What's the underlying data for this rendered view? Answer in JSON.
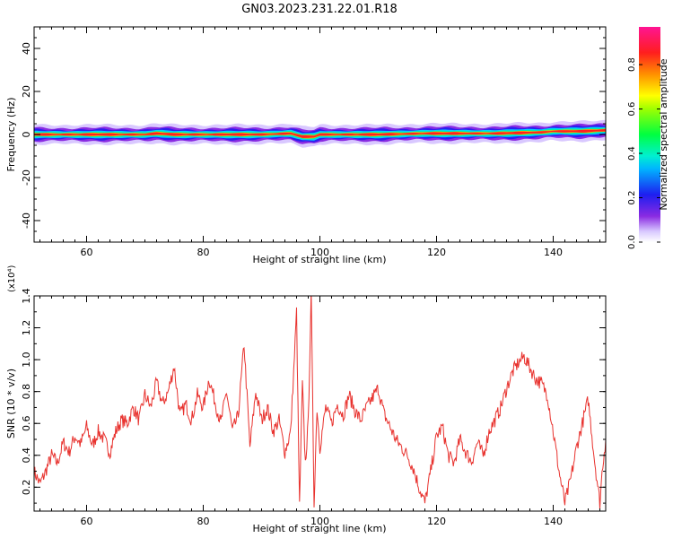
{
  "figure_title": "GN03.2023.231.22.01.R18",
  "chart_data": [
    {
      "type": "heatmap",
      "title": "",
      "xlabel": "Height of straight line (km)",
      "ylabel": "Frequency (Hz)",
      "xlim": [
        51,
        149
      ],
      "ylim": [
        -50,
        50
      ],
      "xticks": [
        60,
        80,
        100,
        120,
        140
      ],
      "yticks": [
        -40,
        -20,
        0,
        20,
        40
      ],
      "band_center_hz": [
        [
          51,
          0
        ],
        [
          60,
          0
        ],
        [
          70,
          0
        ],
        [
          72,
          0.5
        ],
        [
          75,
          0
        ],
        [
          80,
          0
        ],
        [
          85,
          0
        ],
        [
          90,
          0
        ],
        [
          95,
          0.5
        ],
        [
          97,
          -1
        ],
        [
          99,
          -1
        ],
        [
          100,
          0
        ],
        [
          110,
          0
        ],
        [
          118,
          0.5
        ],
        [
          125,
          0.5
        ],
        [
          130,
          0.5
        ],
        [
          138,
          1
        ],
        [
          140,
          1.5
        ],
        [
          145,
          1.5
        ],
        [
          149,
          2
        ]
      ],
      "colorbar": {
        "label": "Normalized spectral amplitude",
        "range": [
          0,
          0.97
        ],
        "ticks": [
          0.0,
          0.2,
          0.4,
          0.6,
          0.8
        ]
      }
    },
    {
      "type": "line",
      "title": "",
      "xlabel": "Height of straight line (km)",
      "ylabel": "SNR (10 * v/v)",
      "y_multiplier_label": "(x10⁴)",
      "xlim": [
        51,
        149
      ],
      "ylim": [
        0.05,
        1.4
      ],
      "xticks": [
        60,
        80,
        100,
        120,
        140
      ],
      "yticks": [
        0.2,
        0.4,
        0.6,
        0.8,
        1.0,
        1.2,
        1.4
      ],
      "grid": false,
      "series": [
        {
          "color": "#e8322e",
          "points": [
            [
              51,
              0.3
            ],
            [
              52,
              0.22
            ],
            [
              53,
              0.3
            ],
            [
              54,
              0.4
            ],
            [
              55,
              0.35
            ],
            [
              56,
              0.48
            ],
            [
              57,
              0.42
            ],
            [
              58,
              0.52
            ],
            [
              59,
              0.47
            ],
            [
              60,
              0.58
            ],
            [
              61,
              0.46
            ],
            [
              62,
              0.55
            ],
            [
              63,
              0.5
            ],
            [
              64,
              0.42
            ],
            [
              65,
              0.55
            ],
            [
              66,
              0.62
            ],
            [
              67,
              0.6
            ],
            [
              68,
              0.7
            ],
            [
              69,
              0.62
            ],
            [
              70,
              0.78
            ],
            [
              71,
              0.7
            ],
            [
              72,
              0.86
            ],
            [
              73,
              0.72
            ],
            [
              74,
              0.8
            ],
            [
              75,
              0.96
            ],
            [
              76,
              0.65
            ],
            [
              77,
              0.72
            ],
            [
              78,
              0.62
            ],
            [
              79,
              0.78
            ],
            [
              80,
              0.7
            ],
            [
              81,
              0.88
            ],
            [
              82,
              0.74
            ],
            [
              83,
              0.6
            ],
            [
              84,
              0.8
            ],
            [
              85,
              0.55
            ],
            [
              86,
              0.65
            ],
            [
              87,
              1.1
            ],
            [
              88,
              0.45
            ],
            [
              89,
              0.8
            ],
            [
              90,
              0.62
            ],
            [
              91,
              0.7
            ],
            [
              92,
              0.55
            ],
            [
              93,
              0.62
            ],
            [
              94,
              0.42
            ],
            [
              95,
              0.55
            ],
            [
              96,
              1.3
            ],
            [
              96.5,
              0.08
            ],
            [
              97,
              0.85
            ],
            [
              97.5,
              0.35
            ],
            [
              98,
              0.6
            ],
            [
              98.5,
              1.4
            ],
            [
              99,
              0.1
            ],
            [
              99.5,
              0.7
            ],
            [
              100,
              0.45
            ],
            [
              101,
              0.7
            ],
            [
              102,
              0.6
            ],
            [
              103,
              0.72
            ],
            [
              104,
              0.65
            ],
            [
              105,
              0.78
            ],
            [
              106,
              0.68
            ],
            [
              107,
              0.62
            ],
            [
              108,
              0.7
            ],
            [
              109,
              0.76
            ],
            [
              110,
              0.82
            ],
            [
              111,
              0.66
            ],
            [
              112,
              0.58
            ],
            [
              113,
              0.5
            ],
            [
              114,
              0.45
            ],
            [
              115,
              0.4
            ],
            [
              116,
              0.32
            ],
            [
              117,
              0.2
            ],
            [
              118,
              0.1
            ],
            [
              119,
              0.3
            ],
            [
              120,
              0.52
            ],
            [
              121,
              0.58
            ],
            [
              122,
              0.4
            ],
            [
              123,
              0.35
            ],
            [
              124,
              0.5
            ],
            [
              125,
              0.42
            ],
            [
              126,
              0.36
            ],
            [
              127,
              0.48
            ],
            [
              128,
              0.4
            ],
            [
              129,
              0.55
            ],
            [
              130,
              0.62
            ],
            [
              131,
              0.7
            ],
            [
              132,
              0.82
            ],
            [
              133,
              0.92
            ],
            [
              134,
              0.98
            ],
            [
              135,
              1.02
            ],
            [
              136,
              0.95
            ],
            [
              137,
              0.88
            ],
            [
              138,
              0.85
            ],
            [
              139,
              0.78
            ],
            [
              140,
              0.55
            ],
            [
              141,
              0.3
            ],
            [
              142,
              0.1
            ],
            [
              143,
              0.25
            ],
            [
              144,
              0.45
            ],
            [
              145,
              0.6
            ],
            [
              146,
              0.75
            ],
            [
              147,
              0.4
            ],
            [
              148,
              0.1
            ],
            [
              148.5,
              0.35
            ],
            [
              149,
              0.5
            ]
          ]
        }
      ]
    }
  ]
}
